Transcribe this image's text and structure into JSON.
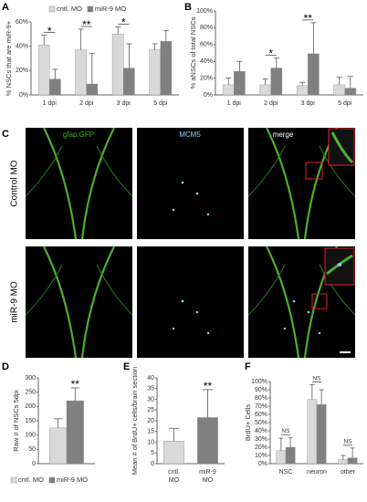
{
  "panel_labels": [
    "A",
    "B",
    "C",
    "D",
    "E",
    "F"
  ],
  "images": {
    "columns": [
      "gfap:GFP",
      "MCM5",
      "merge"
    ],
    "rows": [
      "Control MO",
      "miR-9 MO"
    ]
  },
  "chart_data": [
    {
      "type": "bar",
      "ylabel": "% NSCs that are miR-9+",
      "legend": "top",
      "significance_style": "bracket",
      "categories": [
        "1 dpi",
        "2 dpi",
        "3 dpi",
        "5 dpi"
      ],
      "series": [
        {
          "name": "cntl. MO",
          "color": "#d9d9d9",
          "values": [
            41,
            37,
            50,
            37
          ],
          "errors": [
            8,
            17,
            6,
            5
          ]
        },
        {
          "name": "miR-9 MO",
          "color": "#808080",
          "values": [
            13,
            9,
            22,
            44
          ],
          "errors": [
            8,
            25,
            20,
            9
          ]
        }
      ],
      "significance": [
        "*",
        "**",
        "*",
        null
      ],
      "ylim": [
        0,
        60
      ],
      "yticks": [
        {
          "value": 0,
          "label": "0%"
        },
        {
          "value": 20,
          "label": "20%"
        },
        {
          "value": 40,
          "label": "40%"
        },
        {
          "value": 60,
          "label": "60%"
        }
      ]
    },
    {
      "type": "bar",
      "ylabel": "% aNSCs of total NSCs",
      "significance_style": "bracket",
      "categories": [
        "1 dpi",
        "2 dpi",
        "3 dpi",
        "5 dpi"
      ],
      "series": [
        {
          "color": "#d9d9d9",
          "values": [
            12,
            12,
            11,
            12
          ],
          "errors": [
            8,
            7,
            4,
            9
          ]
        },
        {
          "color": "#808080",
          "values": [
            28,
            32,
            49,
            8
          ],
          "errors": [
            12,
            12,
            37,
            14
          ]
        }
      ],
      "significance": [
        null,
        "*",
        "**",
        null
      ],
      "ylim": [
        0,
        100
      ],
      "yticks": [
        {
          "value": 0,
          "label": "0%"
        },
        {
          "value": 20,
          "label": "20%"
        },
        {
          "value": 40,
          "label": "40%"
        },
        {
          "value": 60,
          "label": "60%"
        },
        {
          "value": 80,
          "label": "80%"
        },
        {
          "value": 100,
          "label": "100%"
        }
      ]
    },
    {
      "type": "bar",
      "ylabel": "Raw # of NSCs 5dpi",
      "legend": "bottom",
      "significance_style": "bar",
      "categories": [
        null
      ],
      "series": [
        {
          "name": "cntl. MO",
          "color": "#d9d9d9",
          "values": [
            125
          ],
          "errors": [
            32
          ]
        },
        {
          "name": "miR-9 MO",
          "color": "#808080",
          "values": [
            220
          ],
          "errors": [
            45
          ]
        }
      ],
      "significance": [
        "**"
      ],
      "ylim": [
        0,
        300
      ],
      "yticks": [
        0,
        50,
        100,
        150,
        200,
        250,
        300
      ]
    },
    {
      "type": "bar",
      "ylabel": "Mean # of BrdU+ cells/brain section",
      "significance_style": "bar",
      "categories": [
        "cntl. MO",
        "miR-9 MO"
      ],
      "series": [
        {
          "colors": [
            "#d9d9d9",
            "#808080"
          ],
          "values": [
            10.5,
            21.5
          ],
          "errors": [
            6,
            13
          ]
        }
      ],
      "significance": [
        null,
        "**"
      ],
      "ylim": [
        0,
        40
      ],
      "yticks": [
        0,
        5,
        10,
        15,
        20,
        25,
        30,
        35,
        40
      ]
    },
    {
      "type": "bar",
      "ylabel": "BrdU+ Cells",
      "significance_style": "bracket",
      "categories": [
        "NSC",
        "neuron",
        "other"
      ],
      "series": [
        {
          "color": "#d9d9d9",
          "values": [
            16,
            78,
            5
          ],
          "errors": [
            15,
            18,
            5
          ]
        },
        {
          "color": "#808080",
          "values": [
            20,
            72,
            7
          ],
          "errors": [
            12,
            18,
            12
          ]
        }
      ],
      "significance": [
        "NS",
        "NS",
        "NS"
      ],
      "ylim": [
        0,
        100
      ],
      "yticks": [
        {
          "value": 0,
          "label": "0%"
        },
        {
          "value": 10,
          "label": "10%"
        },
        {
          "value": 20,
          "label": "20%"
        },
        {
          "value": 30,
          "label": "30%"
        },
        {
          "value": 40,
          "label": "40%"
        },
        {
          "value": 50,
          "label": "50%"
        },
        {
          "value": 60,
          "label": "60%"
        },
        {
          "value": 70,
          "label": "70%"
        },
        {
          "value": 80,
          "label": "80%"
        },
        {
          "value": 90,
          "label": "90%"
        },
        {
          "value": 100,
          "label": "100%"
        }
      ]
    }
  ]
}
